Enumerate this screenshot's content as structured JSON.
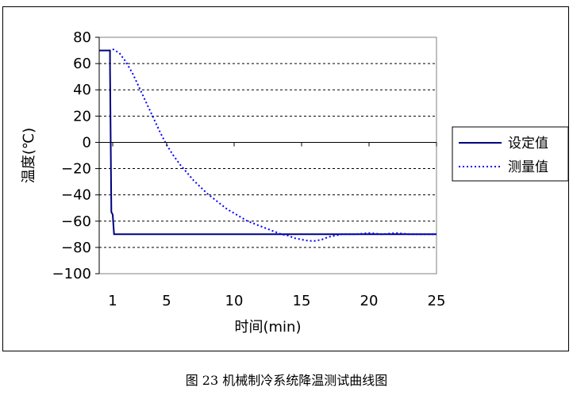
{
  "caption": "图 23 机械制冷系统降温测试曲线图",
  "chart_data": {
    "type": "line",
    "title": "",
    "xlabel": "时间(min)",
    "ylabel": "温度(℃)",
    "xlim": [
      0,
      25
    ],
    "ylim": [
      -100,
      80
    ],
    "x_ticks": [
      {
        "value": 1,
        "label": "1"
      },
      {
        "value": 5,
        "label": "5"
      },
      {
        "value": 10,
        "label": "10"
      },
      {
        "value": 15,
        "label": "15"
      },
      {
        "value": 20,
        "label": "20"
      },
      {
        "value": 25,
        "label": "25"
      }
    ],
    "y_ticks": [
      80,
      60,
      40,
      20,
      0,
      -20,
      -40,
      -60,
      -80,
      -100
    ],
    "grid": "horizontal dashed",
    "legend_position": "right",
    "series": [
      {
        "name": "设定值",
        "color": "#000080",
        "style": "solid",
        "points": [
          [
            0,
            70
          ],
          [
            0.8,
            70
          ],
          [
            0.8,
            58
          ],
          [
            0.9,
            -53
          ],
          [
            1.0,
            -55
          ],
          [
            1.1,
            -70
          ],
          [
            25,
            -70
          ]
        ]
      },
      {
        "name": "测量值",
        "color": "#0000ff",
        "style": "dotted",
        "points": [
          [
            1.0,
            71
          ],
          [
            1.5,
            68
          ],
          [
            2,
            61
          ],
          [
            2.5,
            52
          ],
          [
            3,
            41
          ],
          [
            3.5,
            30
          ],
          [
            4,
            19
          ],
          [
            4.5,
            8
          ],
          [
            5,
            -2
          ],
          [
            5.5,
            -10
          ],
          [
            6,
            -17
          ],
          [
            6.5,
            -23
          ],
          [
            7,
            -29
          ],
          [
            7.5,
            -34
          ],
          [
            8,
            -39
          ],
          [
            8.5,
            -43
          ],
          [
            9,
            -47
          ],
          [
            9.5,
            -51
          ],
          [
            10,
            -54
          ],
          [
            10.5,
            -57
          ],
          [
            11,
            -60
          ],
          [
            11.5,
            -62
          ],
          [
            12,
            -64
          ],
          [
            12.5,
            -66
          ],
          [
            13,
            -68
          ],
          [
            13.5,
            -70
          ],
          [
            14,
            -71
          ],
          [
            14.5,
            -73
          ],
          [
            15,
            -74
          ],
          [
            15.5,
            -75
          ],
          [
            16,
            -75
          ],
          [
            16.5,
            -74
          ],
          [
            17,
            -72
          ],
          [
            17.5,
            -71
          ],
          [
            18,
            -70
          ],
          [
            19,
            -70
          ],
          [
            20,
            -69
          ],
          [
            21,
            -70
          ],
          [
            22,
            -69
          ],
          [
            23,
            -70
          ],
          [
            24,
            -70
          ],
          [
            25,
            -70
          ]
        ]
      }
    ]
  }
}
